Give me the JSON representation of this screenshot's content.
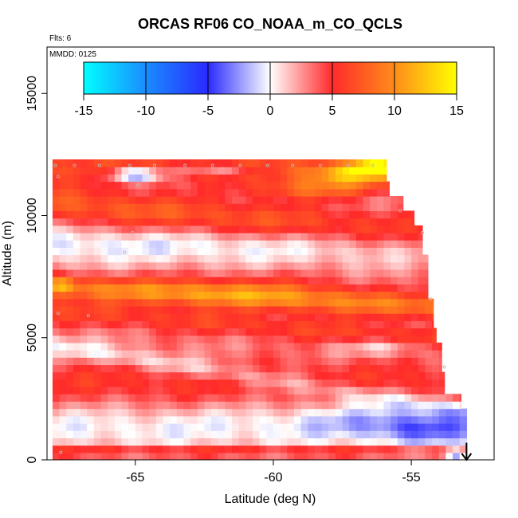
{
  "chart_data": {
    "type": "heatmap",
    "title": "ORCAS RF06 CO_NOAA_m_CO_QCLS",
    "subtitle_flights": "Flts: 6",
    "subtitle_date": "MMDD: 0125",
    "xlabel": "Latitude (deg N)",
    "ylabel": "Altitude (m)",
    "xlim": [
      -68.2,
      -52.0
    ],
    "ylim": [
      0,
      16900
    ],
    "x_ticks": [
      -65,
      -60,
      -55
    ],
    "x_tick_labels": [
      "-65",
      "-60",
      "-55"
    ],
    "y_ticks": [
      0,
      5000,
      10000,
      15000
    ],
    "y_tick_labels": [
      "0",
      "5000",
      "10000",
      "15000"
    ],
    "colorbar": {
      "range": [
        -15,
        15
      ],
      "ticks": [
        -15,
        -10,
        -5,
        0,
        5,
        10,
        15
      ],
      "tick_labels": [
        "-15",
        "-10",
        "-5",
        "0",
        "5",
        "10",
        "15"
      ],
      "stops": [
        {
          "value": -15,
          "color": "#00ffff"
        },
        {
          "value": -10,
          "color": "#1a8cff"
        },
        {
          "value": -5,
          "color": "#2a2aff"
        },
        {
          "value": 0,
          "color": "#ffffff"
        },
        {
          "value": 5,
          "color": "#ff2a2a"
        },
        {
          "value": 10,
          "color": "#ff8c1a"
        },
        {
          "value": 15,
          "color": "#ffff00"
        }
      ]
    },
    "cell_size": {
      "dlat": 0.25,
      "dalt": 300
    },
    "lat_start": -68.0,
    "coverage": [
      {
        "alt": [
          0,
          2000
        ],
        "lat_max": -53.0
      },
      {
        "alt": [
          2000,
          2600
        ],
        "lat_max": -53.2
      },
      {
        "alt": [
          2600,
          3500
        ],
        "lat_max": -53.8
      },
      {
        "alt": [
          3500,
          4800
        ],
        "lat_max": -53.9
      },
      {
        "alt": [
          4800,
          5500
        ],
        "lat_max": -54.1
      },
      {
        "alt": [
          5500,
          6600
        ],
        "lat_max": -54.2
      },
      {
        "alt": [
          6600,
          8500
        ],
        "lat_max": -54.4
      },
      {
        "alt": [
          8500,
          9500
        ],
        "lat_max": -54.6
      },
      {
        "alt": [
          9500,
          10200
        ],
        "lat_max": -54.9
      },
      {
        "alt": [
          10200,
          10800
        ],
        "lat_max": -55.3
      },
      {
        "alt": [
          10800,
          11300
        ],
        "lat_max": -55.8
      },
      {
        "alt": [
          11300,
          12300
        ],
        "lat_max": -55.9
      }
    ],
    "anomaly_features": [
      {
        "lat": -65.0,
        "alt": 11700,
        "amp": -9,
        "slat": 1.0,
        "salt": 250
      },
      {
        "lat": -62.0,
        "alt": 11900,
        "amp": -4,
        "slat": 1.5,
        "salt": 200
      },
      {
        "lat": -57.0,
        "alt": 11700,
        "amp": 7,
        "slat": 2.0,
        "salt": 400
      },
      {
        "lat": -56.3,
        "alt": 12000,
        "amp": 10,
        "slat": 0.8,
        "salt": 250
      },
      {
        "lat": -58.5,
        "alt": 11100,
        "amp": 5,
        "slat": 2.5,
        "salt": 400
      },
      {
        "lat": -61.0,
        "alt": 7000,
        "amp": 3,
        "slat": 4.0,
        "salt": 600
      },
      {
        "lat": -56.0,
        "alt": 4600,
        "amp": -3,
        "slat": 1.5,
        "salt": 300
      },
      {
        "lat": -54.5,
        "alt": 1300,
        "amp": -4,
        "slat": 1.8,
        "salt": 700
      },
      {
        "lat": -57.0,
        "alt": 1700,
        "amp": -2,
        "slat": 2.5,
        "salt": 700
      },
      {
        "lat": -53.4,
        "alt": 200,
        "amp": -6,
        "slat": 0.4,
        "salt": 300
      },
      {
        "lat": -67.6,
        "alt": 7200,
        "amp": 4,
        "slat": 0.4,
        "salt": 300
      }
    ],
    "layers": [
      {
        "alt": 12000,
        "amp": 3.5,
        "slope": 0,
        "width": 600
      },
      {
        "alt": 10500,
        "amp": 4.5,
        "slope": -100,
        "width": 800
      },
      {
        "alt": 8800,
        "amp": -3.5,
        "slope": 0,
        "width": 800
      },
      {
        "alt": 7100,
        "amp": 6,
        "slope": -60,
        "width": 500
      },
      {
        "alt": 6100,
        "amp": 3,
        "slope": -80,
        "width": 500
      },
      {
        "alt": 4700,
        "amp": -3,
        "slope": -180,
        "width": 400
      },
      {
        "alt": 3200,
        "amp": 2.5,
        "slope": 0,
        "width": 900
      },
      {
        "alt": 1300,
        "amp": -3,
        "slope": 0,
        "width": 900
      },
      {
        "alt": 350,
        "amp": 4,
        "slope": 0,
        "width": 200
      }
    ],
    "base_anomaly": 3,
    "markers": [
      {
        "lat": -67.9,
        "alt": 12050
      },
      {
        "lat": -67.2,
        "alt": 12050
      },
      {
        "lat": -66.3,
        "alt": 12050
      },
      {
        "lat": -65.2,
        "alt": 12050
      },
      {
        "lat": -64.3,
        "alt": 12050
      },
      {
        "lat": -63.2,
        "alt": 12050
      },
      {
        "lat": -62.2,
        "alt": 12050
      },
      {
        "lat": -61.2,
        "alt": 12050
      },
      {
        "lat": -60.2,
        "alt": 12050
      },
      {
        "lat": -59.3,
        "alt": 12050
      },
      {
        "lat": -58.3,
        "alt": 12050
      },
      {
        "lat": -57.3,
        "alt": 12050
      },
      {
        "lat": -56.4,
        "alt": 12050
      },
      {
        "lat": -67.8,
        "alt": 11600
      },
      {
        "lat": -64.9,
        "alt": 11250
      },
      {
        "lat": -55.4,
        "alt": 10200
      },
      {
        "lat": -65.1,
        "alt": 9300
      },
      {
        "lat": -65.4,
        "alt": 8500
      },
      {
        "lat": -54.6,
        "alt": 9300
      },
      {
        "lat": -54.3,
        "alt": 6600
      },
      {
        "lat": -67.8,
        "alt": 6000
      },
      {
        "lat": -66.7,
        "alt": 5900
      },
      {
        "lat": -53.8,
        "alt": 3800
      },
      {
        "lat": -67.2,
        "alt": 2200
      },
      {
        "lat": -67.7,
        "alt": 300
      }
    ],
    "arrow": {
      "lat": -53.0,
      "alt_start": 700,
      "alt_end": 0,
      "direction": "down"
    }
  }
}
